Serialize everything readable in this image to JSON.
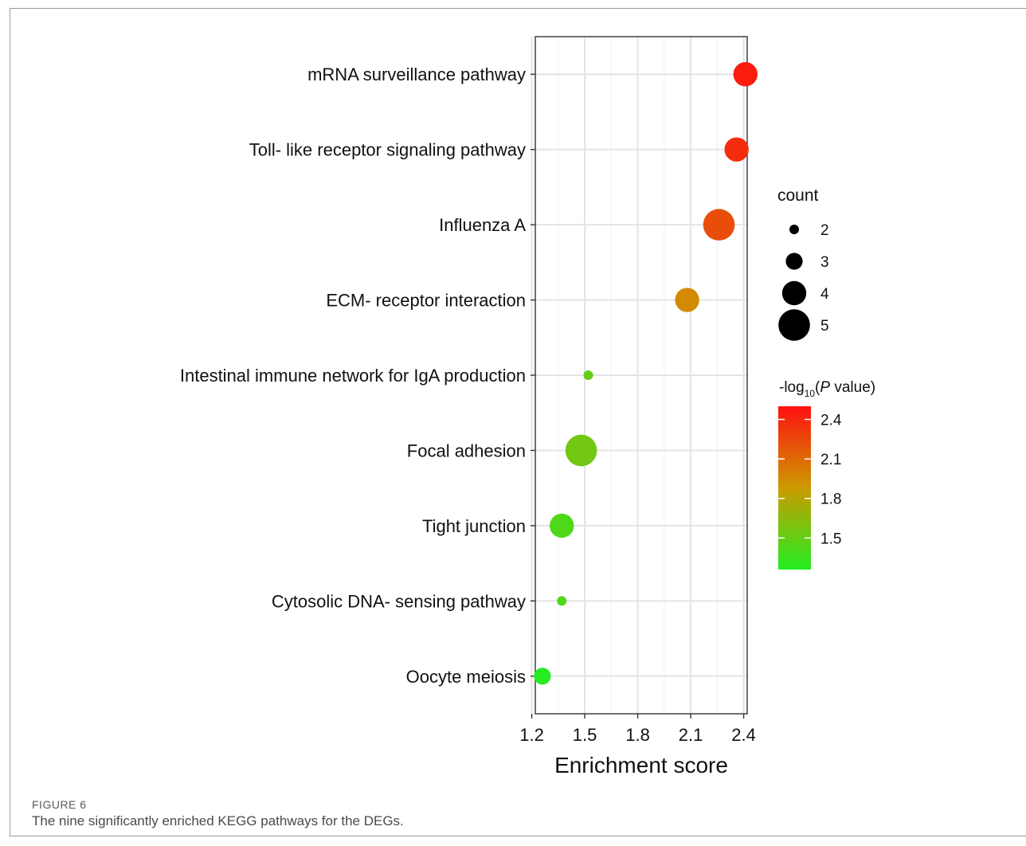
{
  "figure": {
    "label": "FIGURE 6",
    "caption": "The nine significantly enriched KEGG pathways for the DEGs."
  },
  "chart_data": {
    "type": "scatter",
    "xlabel": "Enrichment score",
    "xlim": [
      1.22,
      2.42
    ],
    "xticks": [
      1.2,
      1.5,
      1.8,
      2.1,
      2.4
    ],
    "xtick_labels": [
      "1.2",
      "1.5",
      "1.8",
      "2.1",
      "2.4"
    ],
    "grid": true,
    "categories": [
      "mRNA surveillance pathway",
      "Toll- like receptor signaling pathway",
      "Influenza A",
      "ECM- receptor interaction",
      "Intestinal immune network for IgA production",
      "Focal adhesion",
      "Tight junction",
      "Cytosolic DNA- sensing pathway",
      "Oocyte meiosis"
    ],
    "x": [
      2.41,
      2.36,
      2.26,
      2.08,
      1.52,
      1.48,
      1.37,
      1.37,
      1.26
    ],
    "count": [
      4,
      4,
      5,
      4,
      2,
      5,
      4,
      2,
      3
    ],
    "neg_log10_p": [
      2.45,
      2.38,
      2.22,
      1.95,
      1.5,
      1.55,
      1.42,
      1.42,
      1.28
    ],
    "legend_size": {
      "title": "count",
      "values": [
        2,
        3,
        4,
        5
      ],
      "labels": [
        "2",
        "3",
        "4",
        "5"
      ]
    },
    "legend_color": {
      "title_prefix": "-log",
      "title_sub": "10",
      "title_open": "(",
      "title_italic": "P",
      "title_suffix": " value)",
      "range": [
        1.26,
        2.5
      ],
      "ticks": [
        1.5,
        1.8,
        2.1,
        2.4
      ],
      "tick_labels": [
        "1.5",
        "1.8",
        "2.1",
        "2.4"
      ],
      "low_color": "#22ee22",
      "mid_color": "#cc9a00",
      "high_color": "#ff1010"
    }
  }
}
